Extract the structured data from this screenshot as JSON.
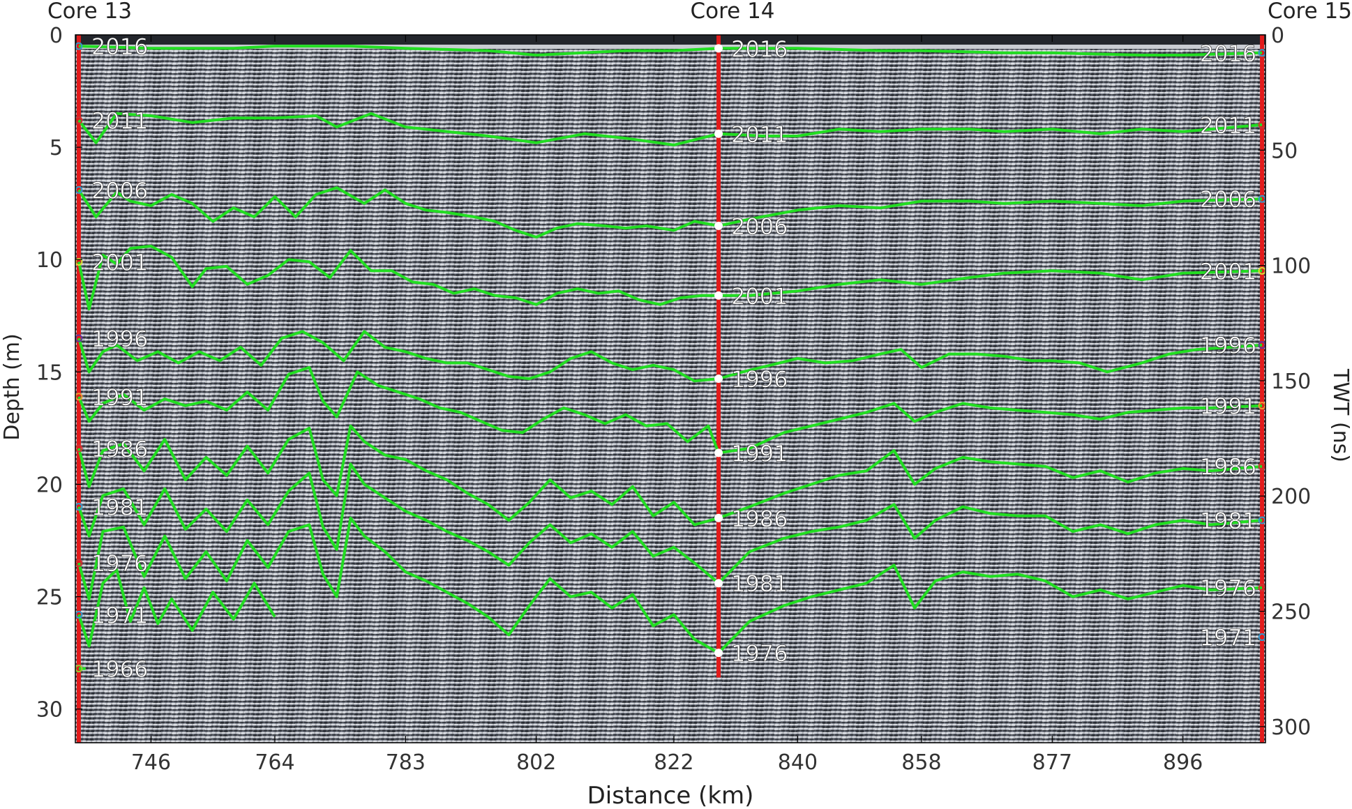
{
  "chart_data": {
    "type": "line",
    "xlabel": "Distance (km)",
    "ylabel": "Depth (m)",
    "y2label": "TWT (ns)",
    "x_ticks": [
      746,
      764,
      783,
      802,
      822,
      840,
      858,
      877,
      896
    ],
    "xlim": [
      735,
      908
    ],
    "depth_ticks": [
      0,
      5,
      10,
      15,
      20,
      25,
      30
    ],
    "ylim_depth": [
      0,
      31.5
    ],
    "twt_ticks": [
      0,
      50,
      100,
      150,
      200,
      250,
      300
    ],
    "ylim_twt": [
      0,
      307
    ],
    "background": "GPR radargram (grayscale)",
    "line_color": "#22dd22",
    "core_line_color": "#e21b1b",
    "cores": [
      {
        "name": "Core 13",
        "distance": 735.5,
        "years": [
          "2016",
          "2011",
          "2006",
          "2001",
          "1996",
          "1991",
          "1986",
          "1981",
          "1976",
          "1971",
          "1966"
        ],
        "depths": [
          0.5,
          3.8,
          6.9,
          10.1,
          13.5,
          16.1,
          18.4,
          21.0,
          23.5,
          25.8,
          28.2
        ]
      },
      {
        "name": "Core 14",
        "distance": 828.5,
        "years": [
          "2016",
          "2011",
          "2006",
          "2001",
          "1996",
          "1991",
          "1986",
          "1981",
          "1976"
        ],
        "depths": [
          0.6,
          4.4,
          8.5,
          11.6,
          15.3,
          18.6,
          21.5,
          24.4,
          27.5
        ]
      },
      {
        "name": "Core 15",
        "distance": 907.5,
        "years": [
          "2016",
          "2011",
          "2006",
          "2001",
          "1996",
          "1991",
          "1986",
          "1981",
          "1976",
          "1971"
        ],
        "depths": [
          0.8,
          4.0,
          7.3,
          10.5,
          13.8,
          16.5,
          19.2,
          21.6,
          24.6,
          26.8
        ]
      }
    ],
    "series": [
      {
        "name": "2016",
        "x": [
          735.5,
          746,
          758,
          764,
          775,
          783,
          795,
          802,
          815,
          822,
          828.5,
          840,
          852,
          858,
          870,
          877,
          890,
          896,
          907.5
        ],
        "y": [
          0.5,
          0.6,
          0.6,
          0.5,
          0.5,
          0.6,
          0.7,
          0.9,
          0.7,
          0.7,
          0.6,
          0.6,
          0.7,
          0.7,
          0.8,
          0.8,
          0.9,
          0.9,
          0.8
        ]
      },
      {
        "name": "2011",
        "x": [
          735.5,
          738,
          741,
          746,
          752,
          758,
          764,
          770,
          773,
          778,
          783,
          789,
          795,
          802,
          809,
          815,
          822,
          828.5,
          835,
          840,
          846,
          852,
          858,
          865,
          870,
          877,
          884,
          890,
          896,
          907.5
        ],
        "y": [
          3.8,
          4.8,
          3.5,
          3.6,
          3.9,
          3.7,
          3.7,
          3.6,
          4.1,
          3.5,
          4.1,
          4.3,
          4.5,
          4.8,
          4.4,
          4.6,
          4.9,
          4.4,
          4.5,
          4.5,
          4.2,
          4.3,
          4.2,
          4.2,
          4.3,
          4.2,
          4.4,
          4.2,
          4.3,
          4.0
        ]
      },
      {
        "name": "2006",
        "x": [
          735.5,
          738,
          741,
          743,
          746,
          749,
          752,
          755,
          758,
          761,
          764,
          767,
          770,
          773,
          777,
          780,
          783,
          786,
          789,
          793,
          796,
          799,
          802,
          805,
          808,
          812,
          815,
          818,
          822,
          825,
          828.5,
          833,
          840,
          846,
          852,
          858,
          865,
          870,
          877,
          884,
          890,
          896,
          907.5
        ],
        "y": [
          6.9,
          8.1,
          7.0,
          7.4,
          7.6,
          7.1,
          7.5,
          8.3,
          7.7,
          8.1,
          7.2,
          8.1,
          7.1,
          6.8,
          7.5,
          6.9,
          7.5,
          7.8,
          7.9,
          8.1,
          8.3,
          8.7,
          9.0,
          8.6,
          8.4,
          8.5,
          8.6,
          8.5,
          8.7,
          8.3,
          8.5,
          8.2,
          7.8,
          7.6,
          7.7,
          7.4,
          7.4,
          7.5,
          7.4,
          7.5,
          7.6,
          7.4,
          7.3
        ]
      },
      {
        "name": "2001",
        "x": [
          735.5,
          737,
          739,
          741,
          743,
          746,
          749,
          752,
          754,
          757,
          760,
          763,
          766,
          769,
          772,
          775,
          778,
          781,
          784,
          787,
          790,
          793,
          796,
          799,
          802,
          805,
          808,
          811,
          814,
          817,
          820,
          823,
          826,
          828.5,
          833,
          840,
          846,
          852,
          858,
          865,
          870,
          877,
          884,
          890,
          896,
          907.5
        ],
        "y": [
          10.1,
          12.2,
          9.8,
          10.2,
          9.5,
          9.4,
          9.9,
          11.2,
          10.4,
          10.3,
          11.1,
          10.7,
          10.0,
          10.1,
          10.8,
          9.6,
          10.5,
          10.5,
          11.0,
          11.1,
          11.5,
          11.3,
          11.6,
          11.7,
          12.0,
          11.5,
          11.3,
          11.5,
          11.4,
          11.8,
          12.0,
          11.7,
          11.6,
          11.6,
          11.6,
          11.4,
          11.1,
          10.9,
          11.1,
          10.8,
          10.6,
          10.5,
          10.6,
          10.9,
          10.6,
          10.5
        ]
      },
      {
        "name": "1996",
        "x": [
          735.5,
          737,
          739,
          741,
          744,
          747,
          750,
          753,
          756,
          759,
          762,
          765,
          768,
          771,
          774,
          777,
          780,
          783,
          786,
          789,
          792,
          795,
          798,
          801,
          804,
          807,
          810,
          813,
          816,
          819,
          822,
          825,
          828.5,
          832,
          836,
          840,
          844,
          848,
          852,
          855,
          858,
          862,
          866,
          870,
          874,
          877,
          881,
          885,
          890,
          894,
          898,
          907.5
        ],
        "y": [
          13.5,
          15.0,
          14.1,
          13.8,
          14.5,
          14.1,
          14.6,
          14.1,
          14.5,
          13.9,
          14.7,
          13.5,
          13.2,
          13.7,
          14.5,
          13.2,
          13.9,
          14.1,
          14.4,
          14.6,
          14.6,
          14.9,
          15.2,
          15.3,
          15.0,
          14.4,
          14.1,
          14.6,
          14.9,
          14.7,
          14.9,
          15.4,
          15.3,
          15.0,
          14.7,
          14.4,
          14.6,
          14.5,
          14.2,
          14.0,
          14.8,
          14.2,
          14.2,
          14.3,
          14.5,
          14.5,
          14.6,
          15.0,
          14.6,
          14.2,
          14.0,
          13.8
        ]
      },
      {
        "name": "1991",
        "x": [
          735.5,
          737,
          739,
          742,
          745,
          748,
          751,
          754,
          757,
          760,
          763,
          766,
          769,
          771,
          773,
          776,
          779,
          782,
          785,
          788,
          791,
          794,
          797,
          800,
          803,
          806,
          809,
          812,
          815,
          818,
          821,
          824,
          827,
          828.5,
          833,
          838,
          842,
          846,
          850,
          854,
          857,
          860,
          864,
          868,
          872,
          876,
          880,
          884,
          888,
          892,
          896,
          900,
          907.5
        ],
        "y": [
          16.1,
          17.2,
          16.4,
          16.0,
          16.7,
          16.2,
          16.5,
          16.3,
          16.7,
          15.9,
          16.7,
          15.1,
          14.8,
          16.3,
          17.0,
          15.0,
          15.6,
          15.9,
          16.2,
          16.6,
          16.8,
          17.2,
          17.6,
          17.7,
          17.1,
          16.6,
          16.9,
          17.3,
          16.9,
          17.4,
          17.3,
          18.1,
          17.4,
          18.6,
          18.4,
          17.7,
          17.4,
          17.1,
          16.8,
          16.4,
          17.2,
          16.8,
          16.4,
          16.6,
          16.7,
          16.8,
          16.9,
          17.1,
          16.8,
          16.7,
          16.6,
          16.6,
          16.5
        ]
      },
      {
        "name": "1986",
        "x": [
          735.5,
          737,
          739,
          742,
          745,
          748,
          751,
          754,
          757,
          760,
          763,
          766,
          769,
          771,
          773,
          775,
          777,
          780,
          783,
          786,
          789,
          792,
          795,
          798,
          801,
          804,
          807,
          810,
          813,
          816,
          819,
          822,
          825,
          828.5,
          833,
          838,
          842,
          846,
          850,
          854,
          857,
          860,
          864,
          868,
          872,
          876,
          880,
          884,
          888,
          892,
          896,
          900,
          907.5
        ],
        "y": [
          18.4,
          20.1,
          18.5,
          18.2,
          19.4,
          18.0,
          19.8,
          18.8,
          19.6,
          18.3,
          19.5,
          18.0,
          17.5,
          19.8,
          20.5,
          17.4,
          18.1,
          18.7,
          18.9,
          19.4,
          19.8,
          20.4,
          20.9,
          21.6,
          20.8,
          19.8,
          20.6,
          20.3,
          20.9,
          20.1,
          21.4,
          20.8,
          21.8,
          21.5,
          21.0,
          20.4,
          20.0,
          19.6,
          19.4,
          18.5,
          20.0,
          19.3,
          18.8,
          19.0,
          19.1,
          19.2,
          19.7,
          19.4,
          19.9,
          19.5,
          19.3,
          19.4,
          19.2
        ]
      },
      {
        "name": "1981",
        "x": [
          735.5,
          737,
          739,
          742,
          745,
          748,
          751,
          754,
          757,
          760,
          763,
          766,
          769,
          771,
          773,
          775,
          777,
          780,
          783,
          786,
          789,
          792,
          795,
          798,
          801,
          804,
          807,
          810,
          813,
          816,
          819,
          822,
          825,
          828.5,
          833,
          838,
          842,
          846,
          850,
          854,
          857,
          860,
          864,
          868,
          872,
          876,
          880,
          884,
          888,
          892,
          896,
          900,
          907.5
        ],
        "y": [
          21.0,
          22.3,
          20.5,
          20.2,
          21.8,
          20.2,
          22.0,
          21.1,
          22.1,
          20.7,
          21.8,
          20.3,
          19.5,
          21.9,
          22.9,
          19.1,
          20.0,
          20.6,
          21.2,
          21.6,
          22.1,
          22.5,
          23.0,
          23.6,
          22.6,
          21.8,
          22.6,
          22.2,
          22.8,
          22.1,
          23.2,
          22.8,
          23.5,
          24.4,
          23.0,
          22.4,
          22.1,
          21.9,
          21.6,
          20.9,
          22.4,
          21.6,
          21.0,
          21.3,
          21.4,
          21.4,
          22.1,
          21.8,
          22.2,
          21.8,
          21.6,
          21.8,
          21.6
        ]
      },
      {
        "name": "1976",
        "x": [
          735.5,
          737,
          739,
          742,
          745,
          748,
          751,
          754,
          757,
          760,
          763,
          766,
          769,
          771,
          773,
          775,
          777,
          780,
          783,
          786,
          789,
          792,
          795,
          798,
          801,
          804,
          807,
          810,
          813,
          816,
          819,
          822,
          825,
          828.5,
          833,
          838,
          842,
          846,
          850,
          854,
          857,
          860,
          864,
          868,
          872,
          876,
          880,
          884,
          888,
          892,
          896,
          900,
          907.5
        ],
        "y": [
          23.5,
          25.1,
          22.1,
          21.9,
          24.1,
          22.3,
          24.2,
          23.0,
          24.3,
          22.5,
          23.7,
          22.1,
          21.8,
          24.0,
          25.0,
          21.5,
          22.3,
          23.0,
          23.9,
          24.3,
          24.8,
          25.3,
          25.9,
          26.7,
          25.4,
          24.2,
          25.0,
          24.8,
          25.5,
          24.9,
          26.3,
          25.8,
          26.9,
          27.5,
          26.1,
          25.4,
          25.0,
          24.7,
          24.4,
          23.6,
          25.5,
          24.3,
          23.9,
          24.1,
          24.0,
          24.3,
          25.0,
          24.7,
          25.1,
          24.8,
          24.5,
          24.7,
          24.6
        ]
      },
      {
        "name": "1971",
        "x": [
          735.5,
          737,
          739,
          741,
          743,
          745,
          747,
          749,
          752,
          755,
          758,
          761,
          764
        ],
        "y": [
          25.8,
          27.2,
          24.4,
          23.8,
          26.1,
          24.6,
          26.2,
          25.1,
          26.5,
          24.8,
          26.0,
          24.4,
          25.9
        ]
      },
      {
        "name": "1966",
        "x": [
          735.5,
          736.5
        ],
        "y": [
          28.2,
          28.2
        ]
      }
    ]
  }
}
